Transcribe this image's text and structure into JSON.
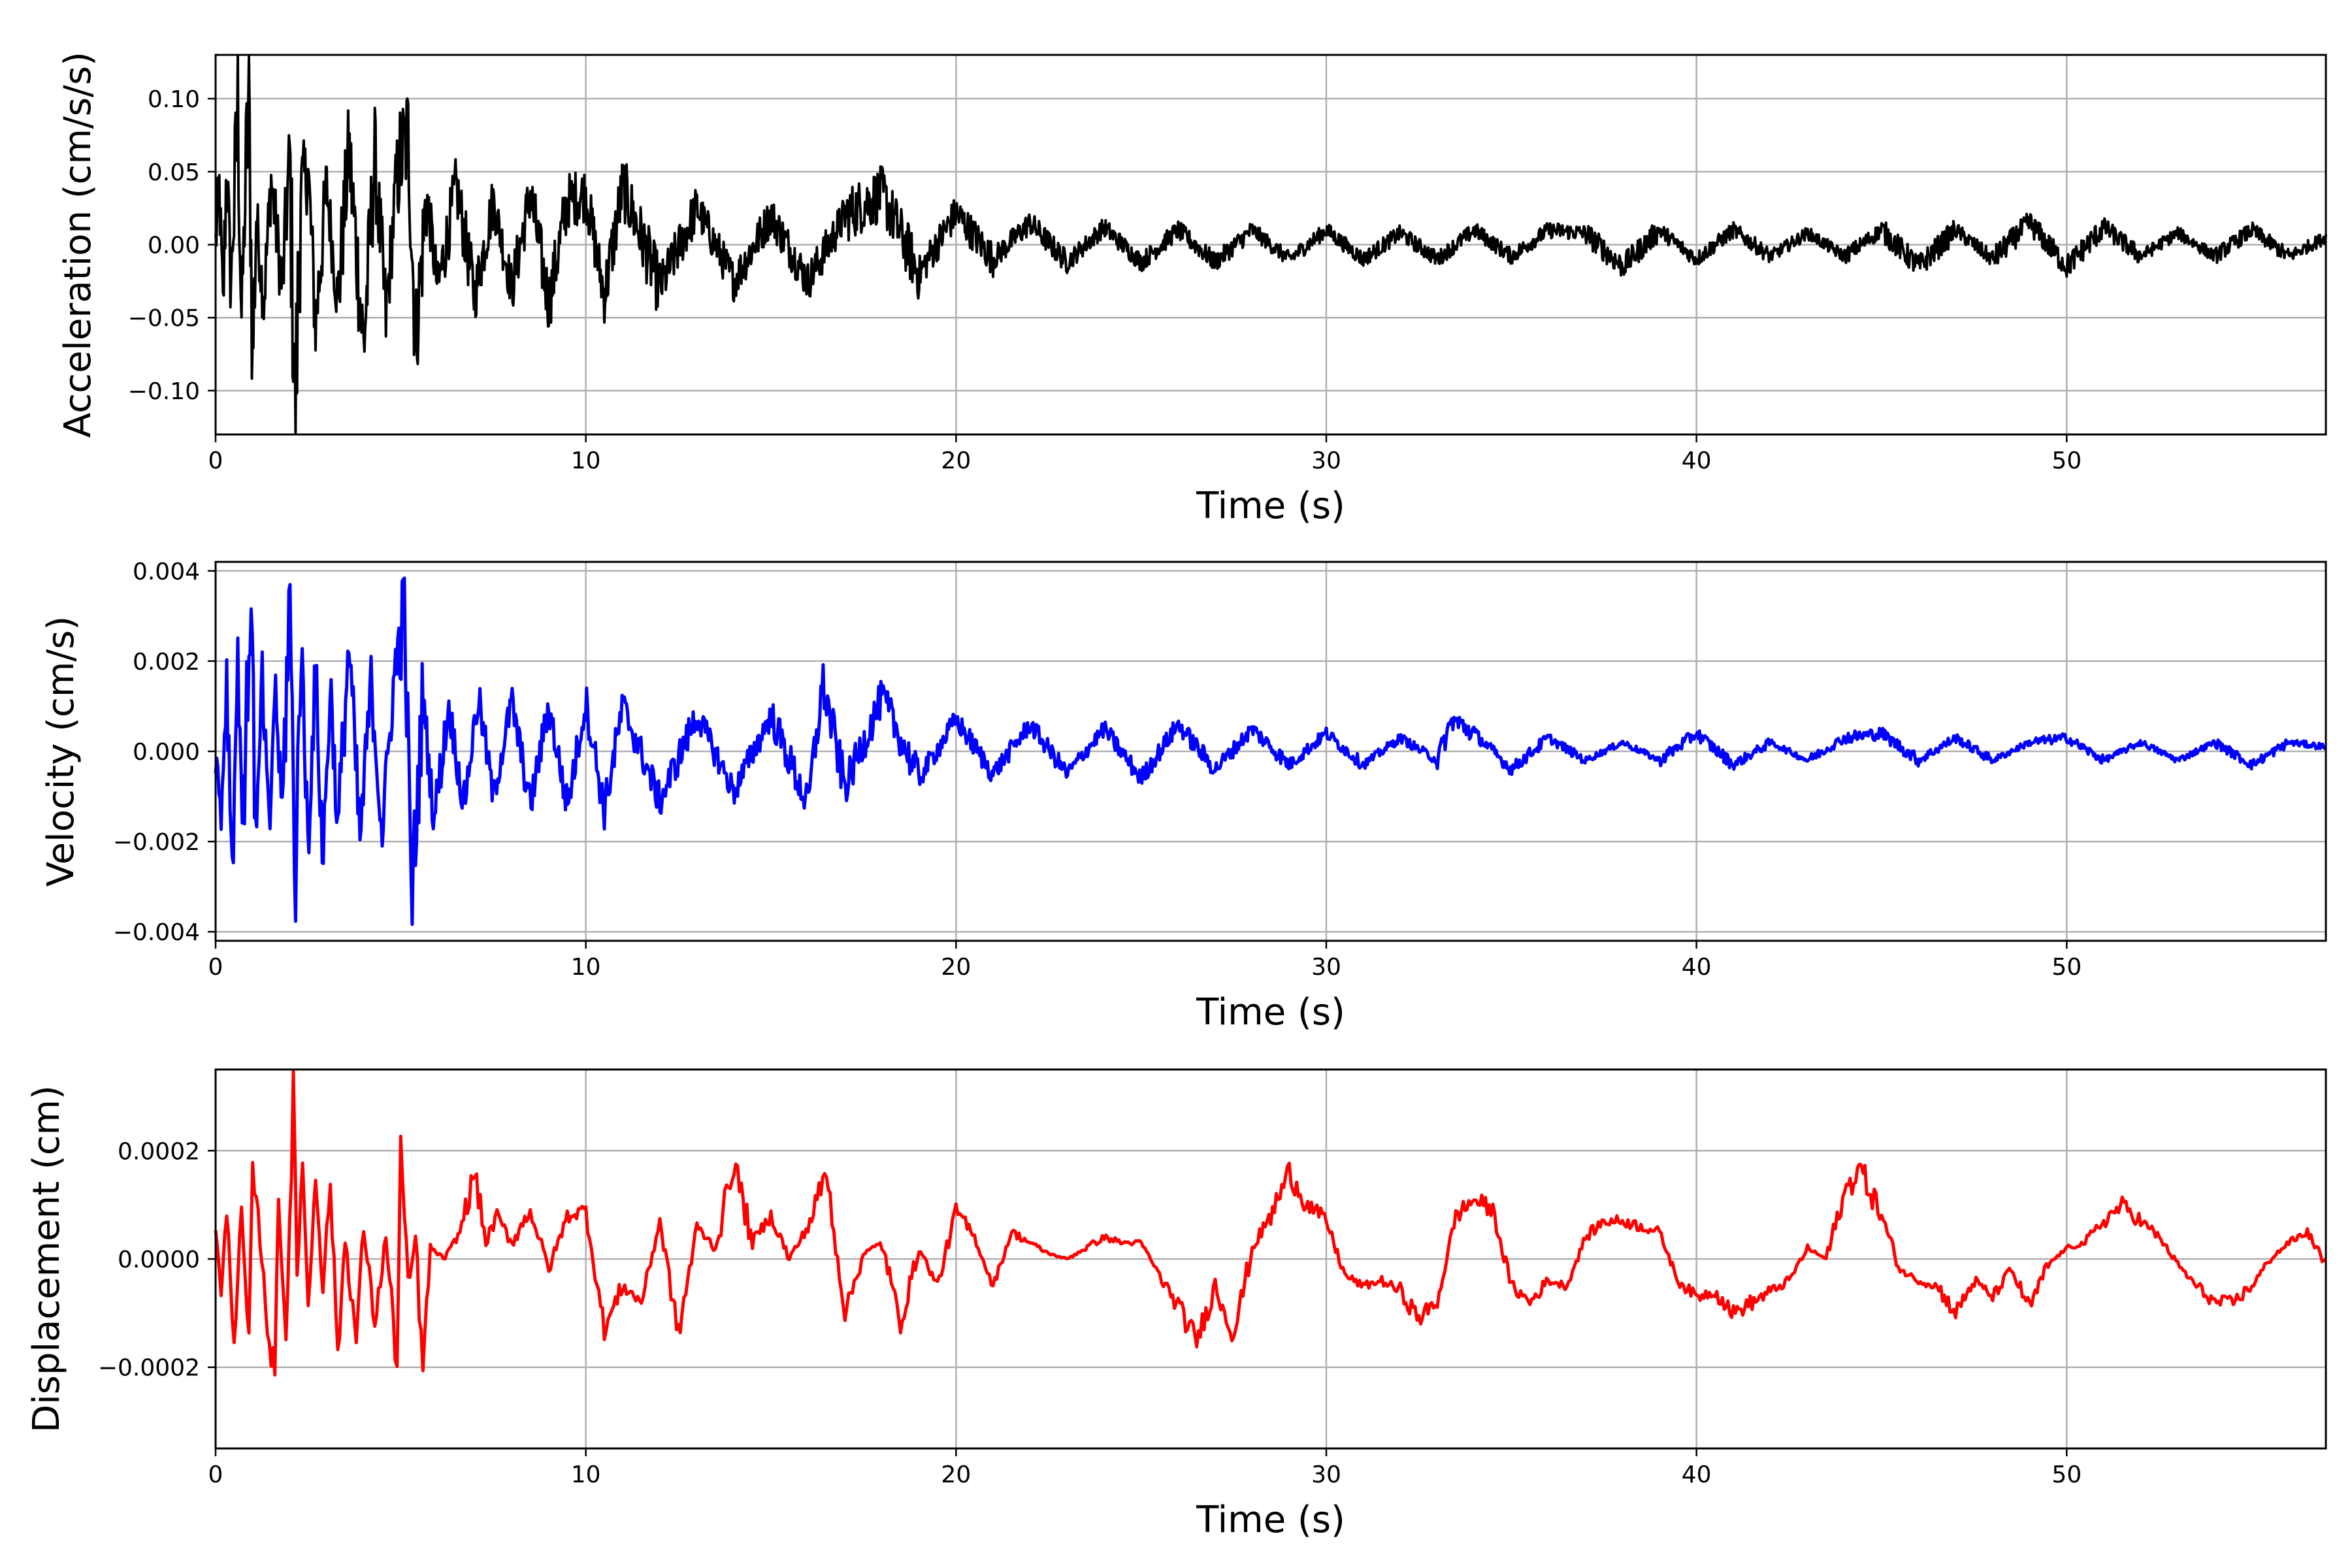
{
  "chart_data": [
    {
      "type": "line",
      "xlabel": "Time (s)",
      "ylabel": "Acceleration (cm/s/s)",
      "xlim": [
        0,
        57
      ],
      "ylim": [
        -0.13,
        0.13
      ],
      "xticks": [
        0,
        10,
        20,
        30,
        40,
        50
      ],
      "xtick_labels": [
        "0",
        "10",
        "20",
        "30",
        "40",
        "50"
      ],
      "yticks": [
        -0.1,
        -0.05,
        0.0,
        0.05,
        0.1
      ],
      "ytick_labels": [
        "−0.10",
        "−0.05",
        "0.00",
        "0.05",
        "0.10"
      ],
      "grid": true,
      "color": "#000000",
      "series": [
        {
          "x": [
            0,
            0.1,
            0.2,
            0.3,
            0.4,
            0.5,
            0.6,
            0.7,
            0.8,
            0.9,
            1.0,
            1.1,
            1.3,
            1.5,
            1.8,
            2.0,
            2.15,
            2.3,
            2.5,
            2.7,
            3.0,
            3.3,
            3.6,
            4.0,
            4.3,
            4.6,
            4.9,
            5.2,
            5.4,
            5.7,
            6.0,
            6.5,
            7.0,
            7.5,
            8.0,
            8.5,
            9.0,
            9.5,
            10,
            10.5,
            11,
            12,
            13,
            14,
            15,
            16,
            17,
            18,
            19,
            20,
            21,
            22,
            23,
            24,
            25,
            26,
            27,
            28,
            29,
            30,
            31,
            32,
            33,
            34,
            35,
            36,
            37,
            38,
            39,
            40,
            41,
            42,
            43,
            44,
            45,
            46,
            47,
            48,
            49,
            50,
            51,
            52,
            53,
            54,
            55,
            56,
            57
          ],
          "y": [
            0.0,
            0.04,
            -0.045,
            0.06,
            -0.03,
            0.02,
            0.097,
            -0.05,
            0.03,
            0.105,
            -0.082,
            0.02,
            -0.04,
            0.045,
            -0.03,
            0.06,
            -0.12,
            0.04,
            0.05,
            -0.055,
            0.04,
            -0.04,
            0.065,
            -0.07,
            0.06,
            -0.05,
            0.05,
            0.075,
            -0.068,
            0.035,
            -0.03,
            0.04,
            -0.035,
            0.03,
            -0.03,
            0.035,
            -0.04,
            0.03,
            0.035,
            -0.035,
            0.04,
            -0.03,
            0.025,
            -0.025,
            0.02,
            -0.025,
            0.02,
            0.035,
            -0.02,
            0.022,
            -0.01,
            0.015,
            -0.012,
            0.012,
            -0.012,
            0.01,
            -0.012,
            0.01,
            -0.01,
            0.01,
            -0.01,
            0.008,
            -0.01,
            0.01,
            -0.008,
            0.01,
            0.008,
            -0.015,
            0.01,
            -0.01,
            0.01,
            -0.008,
            0.008,
            -0.008,
            0.01,
            -0.015,
            0.01,
            -0.01,
            0.015,
            -0.015,
            0.012,
            -0.008,
            0.008,
            -0.008,
            0.01,
            -0.008,
            0.005
          ]
        }
      ]
    },
    {
      "type": "line",
      "xlabel": "Time (s)",
      "ylabel": "Velocity (cm/s)",
      "xlim": [
        0,
        57
      ],
      "ylim": [
        -0.0042,
        0.0042
      ],
      "xticks": [
        0,
        10,
        20,
        30,
        40,
        50
      ],
      "xtick_labels": [
        "0",
        "10",
        "20",
        "30",
        "40",
        "50"
      ],
      "yticks": [
        -0.004,
        -0.002,
        0.0,
        0.002,
        0.004
      ],
      "ytick_labels": [
        "−0.004",
        "−0.002",
        "0.000",
        "0.002",
        "0.004"
      ],
      "grid": true,
      "color": "#0000ff",
      "series": [
        {
          "x": [
            0,
            0.15,
            0.3,
            0.45,
            0.6,
            0.75,
            0.95,
            1.1,
            1.25,
            1.45,
            1.6,
            1.8,
            2.0,
            2.15,
            2.3,
            2.5,
            2.7,
            2.9,
            3.1,
            3.3,
            3.6,
            3.9,
            4.2,
            4.5,
            4.8,
            5.1,
            5.3,
            5.6,
            5.9,
            6.3,
            6.7,
            7.1,
            7.5,
            8.0,
            8.5,
            9.0,
            9.5,
            10,
            10.5,
            11,
            12,
            13,
            14,
            15,
            16,
            16.4,
            17,
            18,
            19,
            20,
            21,
            22,
            23,
            24,
            25,
            26,
            27,
            28,
            29,
            30,
            31,
            32,
            33,
            33.4,
            34,
            35,
            36,
            37,
            38,
            39,
            40,
            41,
            42,
            43,
            44,
            45,
            46,
            47,
            48,
            49,
            50,
            51,
            52,
            53,
            54,
            55,
            56,
            57
          ],
          "y": [
            0.0,
            -0.0014,
            0.0016,
            -0.0025,
            0.002,
            -0.0018,
            0.0038,
            -0.0025,
            0.0017,
            -0.002,
            0.0016,
            -0.0015,
            0.0037,
            -0.0032,
            0.0025,
            -0.002,
            0.0018,
            -0.0025,
            0.0016,
            -0.0018,
            0.0024,
            -0.002,
            0.0015,
            -0.0018,
            0.0014,
            0.0032,
            -0.0034,
            0.0012,
            -0.0015,
            0.001,
            -0.0012,
            0.0012,
            -0.001,
            0.0011,
            -0.0012,
            0.001,
            -0.0012,
            0.0011,
            -0.0013,
            0.001,
            -0.0011,
            0.0008,
            -0.0009,
            0.0008,
            -0.0012,
            0.0015,
            -0.0008,
            0.0012,
            -0.0006,
            0.0007,
            -0.0005,
            0.0006,
            -0.0005,
            0.0005,
            -0.0006,
            0.0006,
            -0.0004,
            0.0005,
            -0.0003,
            0.0004,
            -0.0003,
            0.0003,
            -0.0002,
            0.0007,
            0.0004,
            -0.0004,
            0.0003,
            -0.0002,
            0.0002,
            -0.0002,
            0.0004,
            -0.0003,
            0.0002,
            -0.0002,
            0.0003,
            0.0004,
            -0.0002,
            0.0003,
            -0.0002,
            0.0002,
            0.0003,
            -0.0002,
            0.0002,
            -0.0002,
            0.0002,
            -0.0003,
            0.0002,
            0.0001
          ]
        }
      ]
    },
    {
      "type": "line",
      "xlabel": "Time (s)",
      "ylabel": "Displacement (cm)",
      "xlim": [
        0,
        57
      ],
      "ylim": [
        -0.00035,
        0.00035
      ],
      "xticks": [
        0,
        10,
        20,
        30,
        40,
        50
      ],
      "xtick_labels": [
        "0",
        "10",
        "20",
        "30",
        "40",
        "50"
      ],
      "yticks": [
        -0.0002,
        0.0,
        0.0002
      ],
      "ytick_labels": [
        "−0.0002",
        "0.0000",
        "0.0002"
      ],
      "grid": true,
      "color": "#ff0000",
      "series": [
        {
          "x": [
            0,
            0.15,
            0.3,
            0.5,
            0.7,
            0.9,
            1.0,
            1.2,
            1.4,
            1.6,
            1.7,
            1.9,
            2.1,
            2.2,
            2.35,
            2.5,
            2.7,
            2.9,
            3.1,
            3.3,
            3.5,
            3.8,
            4.0,
            4.3,
            4.6,
            4.9,
            5.0,
            5.2,
            5.4,
            5.6,
            5.8,
            6.2,
            6.6,
            7.0,
            7.3,
            7.6,
            8.0,
            8.5,
            9.0,
            9.5,
            10.0,
            10.5,
            11.0,
            11.5,
            12.0,
            12.5,
            13.0,
            13.5,
            14.0,
            14.5,
            15.0,
            15.5,
            16.0,
            16.5,
            17.0,
            17.5,
            18.0,
            18.5,
            19.0,
            19.5,
            20.0,
            20.5,
            21.0,
            21.5,
            22.0,
            22.5,
            23.0,
            23.5,
            24.0,
            24.5,
            25.0,
            25.5,
            26.0,
            26.5,
            27.0,
            27.5,
            28.0,
            28.5,
            29.0,
            29.5,
            30.0,
            30.5,
            31.0,
            31.5,
            32.0,
            32.5,
            33.0,
            33.5,
            34.0,
            34.5,
            35.0,
            35.5,
            36.0,
            36.5,
            37.0,
            37.5,
            38.0,
            38.5,
            39.0,
            39.5,
            40.0,
            40.5,
            41.0,
            41.5,
            42.0,
            42.5,
            43.0,
            43.5,
            44.0,
            44.4,
            45.0,
            45.5,
            46.0,
            46.5,
            47.0,
            47.5,
            48.0,
            48.5,
            49.0,
            49.5,
            50.0,
            50.5,
            51.0,
            51.5,
            52.0,
            52.5,
            53.0,
            53.5,
            54.0,
            54.5,
            55.0,
            55.5,
            56.0,
            56.5,
            57.0
          ],
          "y": [
            6e-05,
            -7e-05,
            9e-05,
            -0.00015,
            8e-05,
            -0.00016,
            0.00016,
            4e-05,
            -0.00012,
            -0.00022,
            0.00012,
            -0.00015,
            0.00031,
            -5e-05,
            0.0002,
            -0.0001,
            0.00016,
            -5e-05,
            0.00014,
            -0.00018,
            4e-05,
            -0.00015,
            6e-05,
            -0.00012,
            4e-05,
            -0.0002,
            0.00021,
            -6e-05,
            4e-05,
            -0.00021,
            2e-05,
            0.0,
            5e-05,
            0.00016,
            3e-05,
            8e-05,
            3e-05,
            9e-05,
            -2e-05,
            8e-05,
            9e-05,
            -0.00013,
            -5e-05,
            -8e-05,
            7e-05,
            -0.00014,
            6e-05,
            2e-05,
            0.00018,
            3e-05,
            8e-05,
            0.0,
            6e-05,
            0.00016,
            -0.0001,
            1e-05,
            3e-05,
            -0.00012,
            2e-05,
            -5e-05,
            9e-05,
            4e-05,
            -5e-05,
            5e-05,
            3e-05,
            1e-05,
            0.0,
            2e-05,
            4e-05,
            3e-05,
            3e-05,
            -3e-05,
            -9e-05,
            -0.00015,
            -5e-05,
            -0.00014,
            2e-05,
            8e-05,
            0.00016,
            0.0001,
            7e-05,
            -3e-05,
            -5e-05,
            -4e-05,
            -6e-05,
            -0.00011,
            -8e-05,
            8e-05,
            0.00011,
            9e-05,
            -5e-05,
            -8e-05,
            -4e-05,
            -5e-05,
            4e-05,
            7e-05,
            7e-05,
            6e-05,
            5e-05,
            -4e-05,
            -7e-05,
            -6e-05,
            -0.0001,
            -8e-05,
            -6e-05,
            -4e-05,
            2e-05,
            0.0,
            0.00012,
            0.00017,
            8e-05,
            -2e-05,
            -4e-05,
            -5e-05,
            -0.0001,
            -4e-05,
            -7e-05,
            -2e-05,
            -9e-05,
            -1e-05,
            2e-05,
            3e-05,
            7e-05,
            0.0001,
            7e-05,
            4e-05,
            -1e-05,
            -5e-05,
            -8e-05,
            -8e-05,
            -5e-05,
            0.0,
            3e-05,
            5e-05,
            -1e-05
          ]
        }
      ]
    }
  ]
}
